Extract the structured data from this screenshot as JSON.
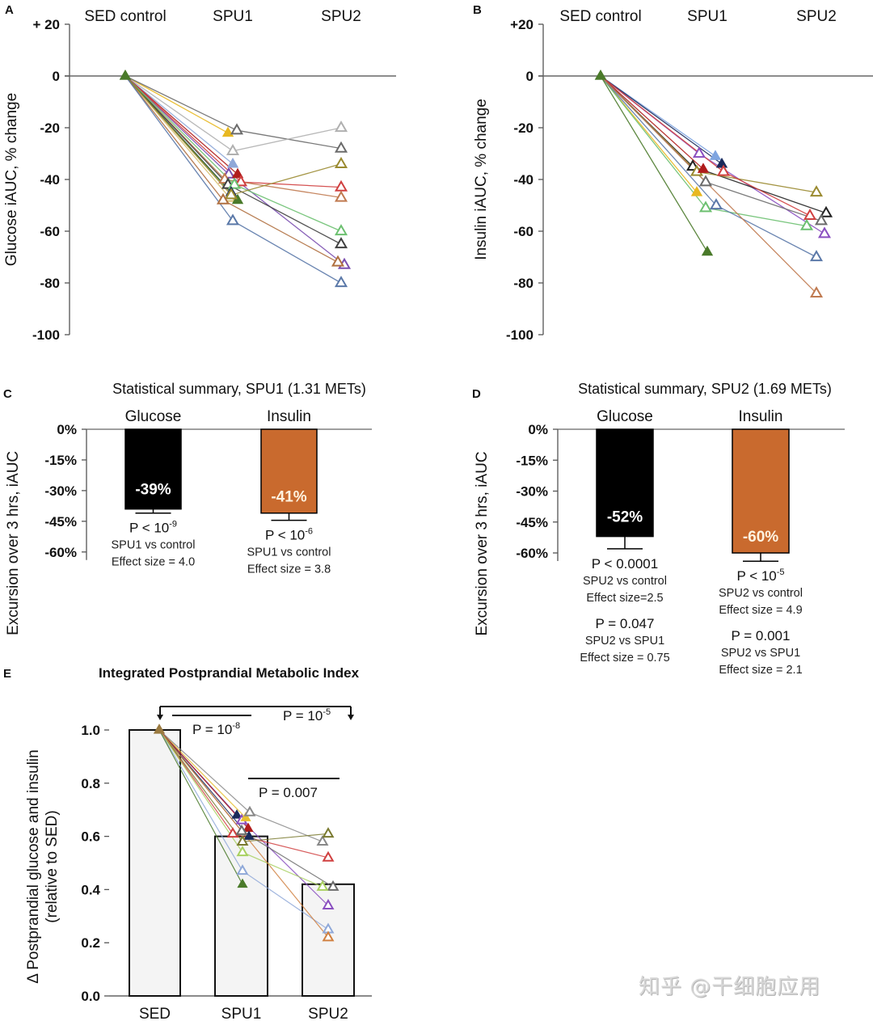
{
  "watermark": "知乎 @干细胞应用",
  "chart_data": [
    {
      "panel": "A",
      "type": "line",
      "categories": [
        "SED control",
        "SPU1",
        "SPU2"
      ],
      "ylabel": "Glucose iAUC,  % change",
      "ylim": [
        -100,
        20
      ],
      "yticks": [
        "+ 20",
        "0",
        "-20",
        "-40",
        "-60",
        "-80",
        "-100"
      ],
      "ytick_values": [
        20,
        0,
        -20,
        -40,
        -60,
        -80,
        -100
      ],
      "marker": "triangle",
      "series": [
        {
          "color": "#e8b820",
          "filled": true,
          "values": [
            0,
            -22,
            null
          ]
        },
        {
          "color": "#6b6b6b",
          "filled": false,
          "values": [
            0,
            -21,
            -28
          ]
        },
        {
          "color": "#b0b0b0",
          "filled": false,
          "values": [
            0,
            -29,
            -20
          ]
        },
        {
          "color": "#8fa8d8",
          "filled": true,
          "values": [
            0,
            -34,
            null
          ]
        },
        {
          "color": "#7b4fb0",
          "filled": false,
          "values": [
            0,
            -38,
            -73
          ]
        },
        {
          "color": "#b01c1c",
          "filled": true,
          "values": [
            0,
            -38,
            null
          ]
        },
        {
          "color": "#d04040",
          "filled": false,
          "values": [
            0,
            -41,
            -43
          ]
        },
        {
          "color": "#c07a50",
          "filled": false,
          "values": [
            0,
            -40,
            -47
          ]
        },
        {
          "color": "#404040",
          "filled": false,
          "values": [
            0,
            -42,
            -65
          ]
        },
        {
          "color": "#6cc070",
          "filled": false,
          "values": [
            0,
            -42,
            -60
          ]
        },
        {
          "color": "#1a2a5a",
          "filled": true,
          "values": [
            0,
            -45,
            null
          ]
        },
        {
          "color": "#d8c070",
          "filled": false,
          "values": [
            0,
            -47,
            null
          ]
        },
        {
          "color": "#4a7a2a",
          "filled": true,
          "values": [
            0,
            -48,
            null
          ]
        },
        {
          "color": "#9a8a30",
          "filled": false,
          "values": [
            0,
            -46,
            -34
          ]
        },
        {
          "color": "#b07040",
          "filled": false,
          "values": [
            0,
            -48,
            -72
          ]
        },
        {
          "color": "#5a78a8",
          "filled": false,
          "values": [
            0,
            -56,
            -80
          ]
        }
      ]
    },
    {
      "panel": "B",
      "type": "line",
      "categories": [
        "SED control",
        "SPU1",
        "SPU2"
      ],
      "ylabel": "Insulin iAUC,  % change",
      "ylim": [
        -100,
        20
      ],
      "yticks": [
        "+20",
        "0",
        "-20",
        "-40",
        "-60",
        "-80",
        "-100"
      ],
      "ytick_values": [
        20,
        0,
        -20,
        -40,
        -60,
        -80,
        -100
      ],
      "marker": "triangle",
      "series": [
        {
          "color": "#8a4fc0",
          "filled": false,
          "values": [
            0,
            -30,
            -61
          ]
        },
        {
          "color": "#7ea4e0",
          "filled": true,
          "values": [
            0,
            -31,
            null
          ]
        },
        {
          "color": "#1a2a5a",
          "filled": true,
          "values": [
            0,
            -34,
            null
          ]
        },
        {
          "color": "#222222",
          "filled": false,
          "values": [
            0,
            -35,
            -53
          ]
        },
        {
          "color": "#9a8a30",
          "filled": false,
          "values": [
            0,
            -37,
            -45
          ]
        },
        {
          "color": "#b01c1c",
          "filled": true,
          "values": [
            0,
            -36,
            null
          ]
        },
        {
          "color": "#d04040",
          "filled": false,
          "values": [
            0,
            -37,
            -54
          ]
        },
        {
          "color": "#6b6b6b",
          "filled": false,
          "values": [
            0,
            -41,
            -56
          ]
        },
        {
          "color": "#e8b820",
          "filled": true,
          "values": [
            0,
            -45,
            null
          ]
        },
        {
          "color": "#6cc070",
          "filled": false,
          "values": [
            0,
            -51,
            -58
          ]
        },
        {
          "color": "#5a78a8",
          "filled": false,
          "values": [
            0,
            -50,
            -70
          ]
        },
        {
          "color": "#c07a50",
          "filled": false,
          "values": [
            0,
            null,
            -84
          ]
        },
        {
          "color": "#4a7a2a",
          "filled": true,
          "values": [
            0,
            -68,
            null
          ]
        }
      ]
    },
    {
      "panel": "C",
      "type": "bar",
      "title": "Statistical summary,  SPU1 (1.31 METs)",
      "ylabel": "Excursion over 3 hrs,  iAUC",
      "ylim": [
        -60,
        0
      ],
      "yticks": [
        "0%",
        "-15%",
        "-30%",
        "-45%",
        "-60%"
      ],
      "ytick_values": [
        0,
        -15,
        -30,
        -45,
        -60
      ],
      "categories": [
        "Glucose",
        "Insulin"
      ],
      "values": [
        -39,
        -41
      ],
      "errors": [
        2,
        3.5
      ],
      "colors": [
        "#000000",
        "#c96a2e"
      ],
      "value_labels": [
        "-39%",
        "-41%"
      ],
      "annotations": [
        {
          "p": "P < 10",
          "p_exp": "-9",
          "lines": [
            "SPU1 vs control",
            "Effect size = 4.0"
          ]
        },
        {
          "p": "P < 10",
          "p_exp": "-6",
          "lines": [
            "SPU1 vs control",
            "Effect size = 3.8"
          ]
        }
      ]
    },
    {
      "panel": "D",
      "type": "bar",
      "title": "Statistical summary,  SPU2 (1.69 METs)",
      "ylabel": "Excursion over 3 hrs,  iAUC",
      "ylim": [
        -60,
        0
      ],
      "yticks": [
        "0%",
        "-15%",
        "-30%",
        "-45%",
        "-60%"
      ],
      "ytick_values": [
        0,
        -15,
        -30,
        -45,
        -60
      ],
      "categories": [
        "Glucose",
        "Insulin"
      ],
      "values": [
        -52,
        -60
      ],
      "errors": [
        6,
        4
      ],
      "colors": [
        "#000000",
        "#c96a2e"
      ],
      "value_labels": [
        "-52%",
        "-60%"
      ],
      "annotations": [
        {
          "p": "P < 0.0001",
          "p_exp": "",
          "lines": [
            "SPU2 vs control",
            "Effect size=2.5"
          ],
          "p2": "P = 0.047",
          "lines2": [
            "SPU2 vs SPU1",
            "Effect size = 0.75"
          ]
        },
        {
          "p": "P < 10",
          "p_exp": "-5",
          "lines": [
            "SPU2 vs control",
            "Effect size = 4.9"
          ],
          "p2": "P = 0.001",
          "lines2": [
            "SPU2 vs SPU1",
            "Effect size = 2.1"
          ]
        }
      ]
    },
    {
      "panel": "E",
      "type": "bar",
      "title": "Integrated Postprandial Metabolic Index",
      "ylabel": "Δ Postprandial glucose and insulin",
      "ylabel2": "(relative to SED)",
      "ylim": [
        0,
        1.0
      ],
      "yticks": [
        "1.0",
        "0.8",
        "0.6",
        "0.4",
        "0.2",
        "0.0"
      ],
      "ytick_values": [
        1.0,
        0.8,
        0.6,
        0.4,
        0.2,
        0.0
      ],
      "categories": [
        "SED",
        "SPU1",
        "SPU2"
      ],
      "values": [
        1.0,
        0.6,
        0.42
      ],
      "bar_color": "#f4f4f4",
      "comparisons": [
        {
          "label": "P = 10",
          "exp": "-8",
          "from": "SED",
          "to": "SPU1"
        },
        {
          "label": "P = 10",
          "exp": "-5",
          "from": "SED",
          "to": "SPU2"
        },
        {
          "label": "P = 0.007",
          "exp": "",
          "from": "SPU1",
          "to": "SPU2"
        }
      ],
      "series": [
        {
          "color": "#1a2a5a",
          "filled": true,
          "values": [
            1.0,
            0.68,
            null
          ]
        },
        {
          "color": "#8a4fc0",
          "filled": false,
          "values": [
            1.0,
            0.66,
            0.34
          ]
        },
        {
          "color": "#e8c030",
          "filled": true,
          "values": [
            1.0,
            0.67,
            null
          ]
        },
        {
          "color": "#888888",
          "filled": false,
          "values": [
            1.0,
            0.69,
            0.58
          ]
        },
        {
          "color": "#b01c1c",
          "filled": true,
          "values": [
            1.0,
            0.63,
            null
          ]
        },
        {
          "color": "#d04040",
          "filled": false,
          "values": [
            1.0,
            0.61,
            0.52
          ]
        },
        {
          "color": "#1a2a5a",
          "filled": true,
          "values": [
            1.0,
            0.6,
            null
          ]
        },
        {
          "color": "#6b6b6b",
          "filled": false,
          "values": [
            1.0,
            0.62,
            0.41
          ]
        },
        {
          "color": "#7a7a30",
          "filled": false,
          "values": [
            1.0,
            0.58,
            0.61
          ]
        },
        {
          "color": "#a8d060",
          "filled": false,
          "values": [
            1.0,
            0.54,
            0.41
          ]
        },
        {
          "color": "#8fa8d8",
          "filled": false,
          "values": [
            1.0,
            0.47,
            0.25
          ]
        },
        {
          "color": "#4a7a2a",
          "filled": true,
          "values": [
            1.0,
            0.42,
            null
          ]
        },
        {
          "color": "#d08040",
          "filled": false,
          "values": [
            1.0,
            null,
            0.22
          ]
        }
      ]
    }
  ]
}
